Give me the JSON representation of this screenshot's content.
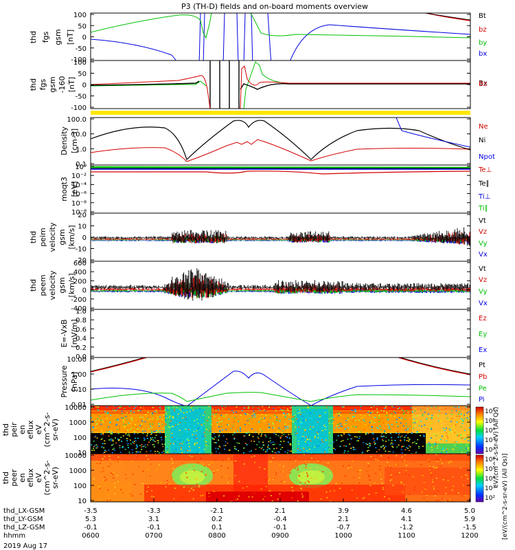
{
  "title": "P3 (TH-D) fields and on-board moments overview",
  "date": "2019 Aug 17",
  "chart_data": [
    {
      "panel": "fgs",
      "type": "line",
      "ylabel": [
        "thd",
        "fgs",
        "gsm",
        "[nT]"
      ],
      "yticks": [
        "100",
        "50",
        "0",
        "-50",
        "-100"
      ],
      "ylim": [
        -100,
        110
      ],
      "legend": [
        {
          "name": "Bt",
          "color": "#000000"
        },
        {
          "name": "bz",
          "color": "#d40000"
        },
        {
          "name": "by",
          "color": "#00c000"
        },
        {
          "name": "bx",
          "color": "#0000e0"
        }
      ]
    },
    {
      "panel": "fgs-dc",
      "type": "line",
      "ylabel": [
        "thd",
        "fgs",
        "gsm",
        "-160",
        "[nT]"
      ],
      "yticks": [
        "100",
        "50",
        "0",
        "-50",
        "-100"
      ],
      "ylim": [
        -120,
        110
      ],
      "legend": [
        {
          "name": "Bx",
          "color": "#000000"
        },
        {
          "name": "Bz",
          "color": "#d40000"
        }
      ]
    },
    {
      "panel": "density",
      "type": "line",
      "ylabel": [
        "Density",
        "[cm-3]"
      ],
      "yticks": [
        "100.0",
        "10.0",
        "1.0",
        "0.1"
      ],
      "scale": "log",
      "legend": [
        {
          "name": "Ne",
          "color": "#d40000"
        },
        {
          "name": "Ni",
          "color": "#000000"
        },
        {
          "name": "Npot",
          "color": "#0000e0"
        }
      ]
    },
    {
      "panel": "temperature",
      "type": "line",
      "ylabel": [
        "moqt3",
        "[eV]"
      ],
      "yticks": [
        "10⁰",
        "10⁻²",
        "10⁻⁴",
        "10⁻⁶",
        "10⁻⁸",
        "10⁻⁸"
      ],
      "scale": "log",
      "legend": [
        {
          "name": "Te⊥",
          "color": "#d40000"
        },
        {
          "name": "Te∥",
          "color": "#000000"
        },
        {
          "name": "Ti⊥",
          "color": "#0000e0"
        },
        {
          "name": "Ti∥",
          "color": "#00c000"
        }
      ]
    },
    {
      "panel": "peim-velocity",
      "type": "line",
      "ylabel": [
        "thd",
        "peim",
        "velocity",
        "gsm",
        "[km/s]"
      ],
      "yticks": [
        "20",
        "10",
        "0",
        "-10",
        "-20"
      ],
      "ylim": [
        -20,
        20
      ],
      "legend": [
        {
          "name": "Vt",
          "color": "#000000"
        },
        {
          "name": "Vz",
          "color": "#d40000"
        },
        {
          "name": "Vy",
          "color": "#00c000"
        },
        {
          "name": "Vx",
          "color": "#0000e0"
        }
      ]
    },
    {
      "panel": "peem-velocity",
      "type": "line",
      "ylabel": [
        "thd",
        "peem",
        "velocity",
        "gsm",
        "[km/s]"
      ],
      "yticks": [
        "600",
        "400",
        "200",
        "0",
        "-200",
        "-400"
      ],
      "ylim": [
        -400,
        600
      ],
      "legend": [
        {
          "name": "Vt",
          "color": "#000000"
        },
        {
          "name": "Vz",
          "color": "#d40000"
        },
        {
          "name": "Vy",
          "color": "#00c000"
        },
        {
          "name": "Vx",
          "color": "#0000e0"
        }
      ]
    },
    {
      "panel": "efield",
      "type": "line",
      "ylabel": [
        "E=-VxB",
        "[mV/m]"
      ],
      "yticks": [
        "1.0",
        "0.8",
        "0.6",
        "0.4",
        "0.2",
        "0.0"
      ],
      "ylim": [
        0,
        1
      ],
      "legend": [
        {
          "name": "Ez",
          "color": "#d40000"
        },
        {
          "name": "Ey",
          "color": "#00c000"
        },
        {
          "name": "Ex",
          "color": "#0000e0"
        }
      ]
    },
    {
      "panel": "pressure",
      "type": "line",
      "ylabel": [
        "Pressure",
        "[nPa]"
      ],
      "yticks": [
        "10.00",
        "1.00",
        "0.10",
        "0.01"
      ],
      "scale": "log",
      "legend": [
        {
          "name": "Pt",
          "color": "#000000"
        },
        {
          "name": "Pb",
          "color": "#d40000"
        },
        {
          "name": "Pe",
          "color": "#00c000"
        },
        {
          "name": "Pi",
          "color": "#0000e0"
        }
      ]
    },
    {
      "panel": "peir-en-eflux",
      "type": "heatmap",
      "ylabel": [
        "thd",
        "peir",
        "en",
        "eflux",
        "eV",
        "(cm^2-s-",
        "sr-eV)"
      ],
      "yticks": [
        "10000",
        "1000",
        "100",
        "10"
      ]
    },
    {
      "panel": "peer-en-eflux",
      "type": "heatmap",
      "ylabel": [
        "thd",
        "peer",
        "en",
        "eflux",
        "eV",
        "(cm^2-s-",
        "sr-eV)"
      ],
      "yticks": [
        "10000",
        "1000",
        "100",
        "10"
      ]
    }
  ],
  "colorbar": {
    "ticks": [
      "10⁶",
      "10⁵",
      "10⁴",
      "10³",
      "10²"
    ],
    "label": "eV/(cm^2-s-sr-eV) (All Qs)",
    "label_lower": "[eV/(cm^2-s-sr-eV) (All Qs)]"
  },
  "xaxis": {
    "row_labels": [
      "thd_LX-GSM",
      "thd_LY-GSM",
      "thd_LZ-GSM",
      "hhmm"
    ],
    "columns": [
      [
        "-3.5",
        "5.3",
        "-0.1",
        "0600"
      ],
      [
        "-3.3",
        "3.1",
        "-0.1",
        "0700"
      ],
      [
        "-2.1",
        "0.2",
        "0.1",
        "0800"
      ],
      [
        "2.1",
        "-0.4",
        "-0.1",
        "0900"
      ],
      [
        "3.9",
        "2.1",
        "-0.7",
        "1000"
      ],
      [
        "4.6",
        "4.1",
        "-1.2",
        "1100"
      ],
      [
        "5.0",
        "5.9",
        "-1.5",
        "1200"
      ]
    ]
  },
  "colors": {
    "black": "#000000",
    "red": "#d40000",
    "green": "#00c000",
    "blue": "#0000e0",
    "yellow": "#ffe600"
  }
}
